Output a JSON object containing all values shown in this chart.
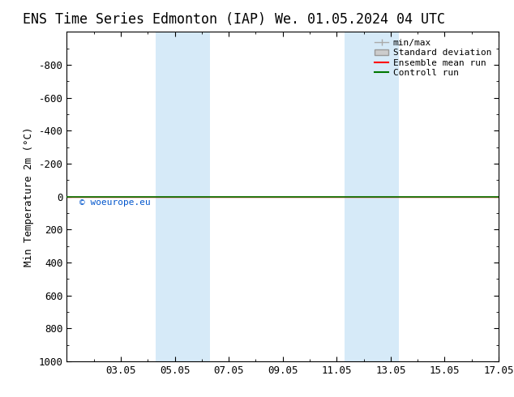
{
  "title_left": "ENS Time Series Edmonton (IAP)",
  "title_right": "We. 01.05.2024 04 UTC",
  "ylabel": "Min Temperature 2m (°C)",
  "xlim": [
    0.0,
    16.0
  ],
  "ylim": [
    1000,
    -1000
  ],
  "yticks": [
    -800,
    -600,
    -400,
    -200,
    0,
    200,
    400,
    600,
    800,
    1000
  ],
  "xtick_labels": [
    "03.05",
    "05.05",
    "07.05",
    "09.05",
    "11.05",
    "13.05",
    "15.05",
    "17.05"
  ],
  "xtick_positions": [
    2,
    4,
    6,
    8,
    10,
    12,
    14,
    16
  ],
  "shaded_bands": [
    {
      "xmin": 3.3,
      "xmax": 5.3
    },
    {
      "xmin": 10.3,
      "xmax": 12.3
    }
  ],
  "shade_color": "#d6eaf8",
  "control_run_y": 0,
  "control_run_color": "#007700",
  "ensemble_mean_color": "#ff0000",
  "minmax_color": "#aaaaaa",
  "std_dev_color": "#cccccc",
  "watermark": "© woeurope.eu",
  "watermark_color": "#0055cc",
  "background_color": "#ffffff",
  "plot_bg_color": "#ffffff",
  "legend_entries": [
    "min/max",
    "Standard deviation",
    "Ensemble mean run",
    "Controll run"
  ],
  "legend_colors": [
    "#aaaaaa",
    "#cccccc",
    "#ff0000",
    "#007700"
  ],
  "title_fontsize": 12,
  "axis_fontsize": 9,
  "legend_fontsize": 8
}
